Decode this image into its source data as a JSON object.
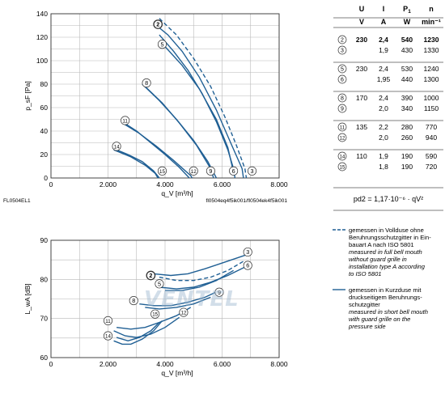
{
  "chart_data": [
    {
      "type": "line",
      "ylabel": "p_sF [Pa]",
      "xlabel": "q_V [m³/h]",
      "xlim": [
        0,
        8000
      ],
      "ylim": [
        0,
        140
      ],
      "xticks": [
        "0",
        "2.000",
        "4.000",
        "6.000",
        "8.000"
      ],
      "yticks": [
        "0",
        "20",
        "40",
        "60",
        "80",
        "100",
        "120",
        "140"
      ],
      "footer_left": "FL0504EL1",
      "footer_right": "fl0504eq4f5ik001/fl0504ek4f5ik001",
      "grid": true,
      "series": [
        {
          "name": "2",
          "dashed": true,
          "points": [
            [
              3800,
              136
            ],
            [
              4400,
              122
            ],
            [
              5000,
              102
            ],
            [
              5600,
              78
            ],
            [
              6100,
              52
            ],
            [
              6500,
              28
            ],
            [
              6800,
              8
            ],
            [
              6850,
              0
            ]
          ]
        },
        {
          "name": "3",
          "dashed": false,
          "points": [
            [
              3600,
              132
            ],
            [
              4100,
              122
            ],
            [
              4600,
              108
            ],
            [
              5200,
              86
            ],
            [
              5800,
              58
            ],
            [
              6300,
              30
            ],
            [
              6700,
              8
            ],
            [
              6750,
              0
            ]
          ]
        },
        {
          "name": "5",
          "dashed": false,
          "points": [
            [
              3800,
              122
            ],
            [
              4300,
              108
            ],
            [
              4800,
              92
            ],
            [
              5300,
              72
            ],
            [
              5800,
              48
            ],
            [
              6200,
              24
            ],
            [
              6400,
              8
            ],
            [
              6450,
              0
            ]
          ]
        },
        {
          "name": "6",
          "dashed": false,
          "points": [
            [
              4000,
              112
            ],
            [
              4600,
              96
            ],
            [
              5200,
              76
            ],
            [
              5800,
              50
            ],
            [
              6200,
              26
            ],
            [
              6400,
              5
            ]
          ]
        },
        {
          "name": "8",
          "dashed": false,
          "points": [
            [
              3200,
              80
            ],
            [
              3800,
              66
            ],
            [
              4400,
              50
            ],
            [
              5000,
              32
            ],
            [
              5500,
              14
            ],
            [
              5800,
              0
            ]
          ]
        },
        {
          "name": "9",
          "dashed": false,
          "points": [
            [
              3300,
              78
            ],
            [
              3900,
              64
            ],
            [
              4500,
              47
            ],
            [
              5100,
              28
            ],
            [
              5600,
              8
            ],
            [
              5700,
              0
            ]
          ]
        },
        {
          "name": "11",
          "dashed": false,
          "points": [
            [
              2500,
              48
            ],
            [
              3000,
              40
            ],
            [
              3500,
              30
            ],
            [
              4000,
              20
            ],
            [
              4500,
              9
            ],
            [
              4850,
              0
            ]
          ]
        },
        {
          "name": "12",
          "dashed": false,
          "points": [
            [
              2500,
              47
            ],
            [
              3100,
              38
            ],
            [
              3700,
              27
            ],
            [
              4300,
              15
            ],
            [
              4900,
              2
            ],
            [
              4950,
              0
            ]
          ]
        },
        {
          "name": "14",
          "dashed": false,
          "points": [
            [
              2200,
              25
            ],
            [
              2700,
              20
            ],
            [
              3200,
              14
            ],
            [
              3600,
              6
            ],
            [
              3800,
              0
            ]
          ]
        },
        {
          "name": "15",
          "dashed": false,
          "points": [
            [
              2200,
              24
            ],
            [
              2800,
              18
            ],
            [
              3300,
              11
            ],
            [
              3650,
              4
            ],
            [
              3750,
              0
            ]
          ]
        }
      ],
      "labels": [
        {
          "text": "2",
          "x": 3750,
          "y": 131,
          "bold": true
        },
        {
          "text": "5",
          "x": 3900,
          "y": 114
        },
        {
          "text": "8",
          "x": 3350,
          "y": 81
        },
        {
          "text": "11",
          "x": 2600,
          "y": 49
        },
        {
          "text": "14",
          "x": 2300,
          "y": 27
        },
        {
          "text": "15",
          "x": 3900,
          "y": 6
        },
        {
          "text": "12",
          "x": 5000,
          "y": 6
        },
        {
          "text": "9",
          "x": 5600,
          "y": 6
        },
        {
          "text": "6",
          "x": 6400,
          "y": 6
        },
        {
          "text": "3",
          "x": 7050,
          "y": 6
        }
      ]
    },
    {
      "type": "line",
      "ylabel": "L_wA [dB]",
      "xlabel": "q_V [m³/h]",
      "xlim": [
        0,
        8000
      ],
      "ylim": [
        55,
        90
      ],
      "xticks": [
        "0",
        "2.000",
        "4.000",
        "6.000",
        "8.000"
      ],
      "yticks": [
        "60",
        "70",
        "80",
        "90"
      ],
      "grid": true,
      "series": [
        {
          "name": "2",
          "dashed": true,
          "points": [
            [
              3800,
              79
            ],
            [
              4400,
              78
            ],
            [
              5000,
              78
            ],
            [
              5600,
              79
            ],
            [
              6200,
              81
            ],
            [
              6800,
              84
            ]
          ]
        },
        {
          "name": "3",
          "dashed": false,
          "points": [
            [
              3600,
              80
            ],
            [
              4200,
              79.5
            ],
            [
              4800,
              80
            ],
            [
              5400,
              81.5
            ],
            [
              6100,
              83.5
            ],
            [
              6800,
              85.5
            ]
          ]
        },
        {
          "name": "5",
          "dashed": false,
          "points": [
            [
              3800,
              76
            ],
            [
              4400,
              75.5
            ],
            [
              5000,
              76
            ],
            [
              5600,
              77.5
            ],
            [
              6200,
              79.5
            ],
            [
              6800,
              82
            ]
          ]
        },
        {
          "name": "6",
          "dashed": false,
          "points": [
            [
              4000,
              75
            ],
            [
              4600,
              75
            ],
            [
              5200,
              76
            ],
            [
              5800,
              78
            ],
            [
              6400,
              81
            ]
          ]
        },
        {
          "name": "8",
          "dashed": false,
          "points": [
            [
              3100,
              71
            ],
            [
              3600,
              70.5
            ],
            [
              4200,
              70.5
            ],
            [
              4800,
              71.5
            ],
            [
              5400,
              73
            ],
            [
              5900,
              75
            ]
          ]
        },
        {
          "name": "9",
          "dashed": false,
          "points": [
            [
              3300,
              70
            ],
            [
              3800,
              69.5
            ],
            [
              4400,
              70
            ],
            [
              5000,
              71
            ],
            [
              5600,
              73
            ]
          ]
        },
        {
          "name": "11",
          "dashed": false,
          "points": [
            [
              2200,
              63
            ],
            [
              2600,
              61.5
            ],
            [
              3000,
              61
            ],
            [
              3500,
              62
            ],
            [
              4000,
              64
            ],
            [
              4500,
              67
            ]
          ]
        },
        {
          "name": "12",
          "dashed": false,
          "points": [
            [
              2300,
              64
            ],
            [
              2800,
              63.5
            ],
            [
              3300,
              64
            ],
            [
              3800,
              65.5
            ],
            [
              4400,
              67.5
            ],
            [
              4900,
              70
            ]
          ]
        },
        {
          "name": "14",
          "dashed": false,
          "points": [
            [
              2200,
              60
            ],
            [
              2500,
              59
            ],
            [
              2800,
              59
            ],
            [
              3200,
              60.5
            ],
            [
              3600,
              63
            ],
            [
              3900,
              66
            ]
          ]
        },
        {
          "name": "15",
          "dashed": false,
          "points": [
            [
              2300,
              61
            ],
            [
              2700,
              60
            ],
            [
              3100,
              61
            ],
            [
              3500,
              63
            ],
            [
              3800,
              65.5
            ]
          ]
        }
      ],
      "labels": [
        {
          "text": "2",
          "x": 3500,
          "y": 79.5,
          "bold": true
        },
        {
          "text": "5",
          "x": 3800,
          "y": 77
        },
        {
          "text": "3",
          "x": 6900,
          "y": 86.5
        },
        {
          "text": "6",
          "x": 6900,
          "y": 82.5
        },
        {
          "text": "8",
          "x": 2900,
          "y": 72
        },
        {
          "text": "9",
          "x": 5900,
          "y": 74.5
        },
        {
          "text": "12",
          "x": 4650,
          "y": 68.5
        },
        {
          "text": "15",
          "x": 3650,
          "y": 68
        },
        {
          "text": "11",
          "x": 2000,
          "y": 66
        },
        {
          "text": "14",
          "x": 2000,
          "y": 61.5
        }
      ]
    }
  ],
  "table": {
    "headers": [
      "U",
      "I",
      "P1",
      "n"
    ],
    "units": [
      "V",
      "A",
      "W",
      "min⁻¹"
    ],
    "groups": [
      {
        "rows": [
          [
            "2",
            "230",
            "2,4",
            "540",
            "1230"
          ],
          [
            "3",
            "",
            "1,9",
            "430",
            "1330"
          ]
        ]
      },
      {
        "rows": [
          [
            "5",
            "230",
            "2,4",
            "530",
            "1240"
          ],
          [
            "6",
            "",
            "1,95",
            "440",
            "1300"
          ]
        ]
      },
      {
        "rows": [
          [
            "8",
            "170",
            "2,4",
            "390",
            "1000"
          ],
          [
            "9",
            "",
            "2,0",
            "340",
            "1150"
          ]
        ]
      },
      {
        "rows": [
          [
            "11",
            "135",
            "2,2",
            "280",
            "770"
          ],
          [
            "12",
            "",
            "2,0",
            "260",
            "940"
          ]
        ]
      },
      {
        "rows": [
          [
            "14",
            "110",
            "1,9",
            "190",
            "590"
          ],
          [
            "15",
            "",
            "1,8",
            "190",
            "720"
          ]
        ]
      }
    ]
  },
  "formula": "p_d2 = 1,17·10⁻⁶ · q_V²",
  "legend": [
    {
      "style": "dashed",
      "lines": [
        "gemessen in Vollduse ohne",
        "Beruhrungsschutzgitter in Ein-",
        "bauart A nach ISO 5801"
      ],
      "italic": [
        "measured in full bell mouth",
        "without guard grille in",
        "installation type A according",
        "to ISO 5801"
      ]
    },
    {
      "style": "solid",
      "lines": [
        "gemessen in Kurzduse mit",
        "druckseitigem Beruhrungs-",
        "schutzgitter"
      ],
      "italic": [
        "measured in short bell mouth",
        "with guard grille on the",
        "pressure side"
      ]
    }
  ],
  "watermark": "VENTEL",
  "colors": {
    "curve": "#1f5f94",
    "grid": "#b8b8b8",
    "frame": "#333333"
  }
}
